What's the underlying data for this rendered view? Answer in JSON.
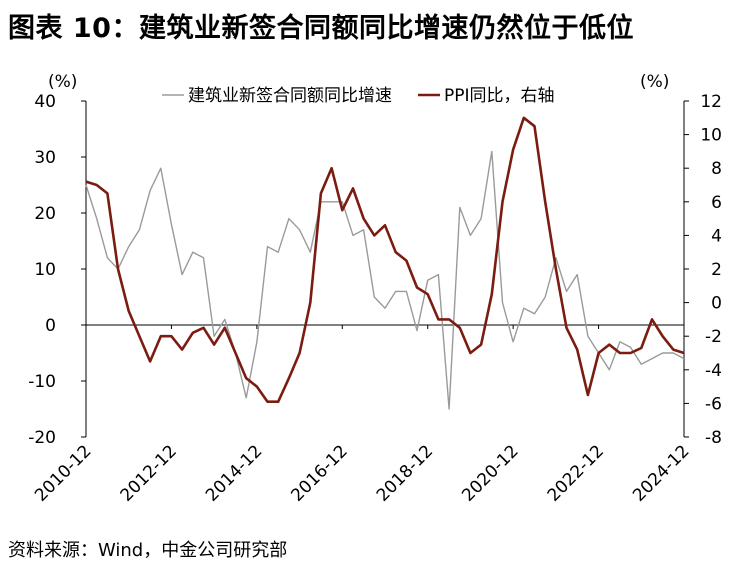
{
  "title": "图表 10：建筑业新签合同额同比增速仍然位于低位",
  "source": "资料来源：Wind，中金公司研究部",
  "colors": {
    "series_gray": "#9a9a9a",
    "series_red": "#7b1c10",
    "axis": "#000000"
  },
  "chart_data": {
    "type": "line",
    "left_unit": "(%)",
    "right_unit": "(%)",
    "ylim_left": [
      -20,
      40
    ],
    "yticks_left": [
      -20,
      -10,
      0,
      10,
      20,
      30,
      40
    ],
    "ylim_right": [
      -8,
      12
    ],
    "yticks_right": [
      -8,
      -6,
      -4,
      -2,
      0,
      2,
      4,
      6,
      8,
      10,
      12
    ],
    "x_range": [
      0,
      56
    ],
    "x_ticks": [
      {
        "x": 0,
        "label": "2010-12"
      },
      {
        "x": 8,
        "label": "2012-12"
      },
      {
        "x": 16,
        "label": "2014-12"
      },
      {
        "x": 24,
        "label": "2016-12"
      },
      {
        "x": 32,
        "label": "2018-12"
      },
      {
        "x": 40,
        "label": "2020-12"
      },
      {
        "x": 48,
        "label": "2022-12"
      },
      {
        "x": 56,
        "label": "2024-12"
      }
    ],
    "series": [
      {
        "name": "建筑业新签合同额同比增速",
        "axis": "left",
        "color": "#9a9a9a",
        "x": [
          0,
          1,
          2,
          3,
          4,
          5,
          6,
          7,
          8,
          9,
          10,
          11,
          12,
          13,
          14,
          15,
          16,
          17,
          18,
          19,
          20,
          21,
          22,
          23,
          24,
          25,
          26,
          27,
          28,
          29,
          30,
          31,
          32,
          33,
          34,
          35,
          36,
          37,
          38,
          39,
          40,
          41,
          42,
          43,
          44,
          45,
          46,
          47,
          48,
          49,
          50,
          51,
          52,
          53,
          54,
          55,
          56
        ],
        "values": [
          25,
          19,
          12,
          10,
          14,
          17,
          24,
          28,
          18,
          9,
          13,
          12,
          -2,
          1,
          -5,
          -13,
          -3,
          14,
          13,
          19,
          17,
          13,
          22,
          22,
          22,
          16,
          17,
          5,
          3,
          6,
          6,
          -1,
          8,
          9,
          -15,
          21,
          16,
          19,
          31,
          4,
          -3,
          3,
          2,
          5,
          12,
          6,
          9,
          -2,
          -5,
          -8,
          -3,
          -4,
          -7,
          -6,
          -5,
          -5,
          -6
        ]
      },
      {
        "name": "PPI同比，右轴",
        "axis": "right",
        "color": "#7b1c10",
        "x": [
          0,
          1,
          2,
          3,
          4,
          5,
          6,
          7,
          8,
          9,
          10,
          11,
          12,
          13,
          14,
          15,
          16,
          17,
          18,
          19,
          20,
          21,
          22,
          23,
          24,
          25,
          26,
          27,
          28,
          29,
          30,
          31,
          32,
          33,
          34,
          35,
          36,
          37,
          38,
          39,
          40,
          41,
          42,
          43,
          44,
          45,
          46,
          47,
          48,
          49,
          50,
          51,
          52,
          53,
          54,
          55,
          56
        ],
        "values": [
          7.2,
          7,
          6.5,
          2,
          -0.5,
          -2,
          -3.5,
          -2,
          -2,
          -2.8,
          -1.8,
          -1.5,
          -2.5,
          -1.5,
          -3,
          -4.5,
          -5,
          -5.9,
          -5.9,
          -4.5,
          -3,
          0,
          6.5,
          8,
          5.5,
          6.8,
          5,
          4,
          4.6,
          3,
          2.5,
          0.9,
          0.5,
          -1,
          -1,
          -1.5,
          -3,
          -2.5,
          0.5,
          6,
          9.1,
          11,
          10.5,
          6,
          2,
          -1.5,
          -2.8,
          -5.5,
          -3,
          -2.5,
          -3,
          -3,
          -2.7,
          -1,
          -2,
          -2.8,
          -3
        ]
      }
    ]
  }
}
